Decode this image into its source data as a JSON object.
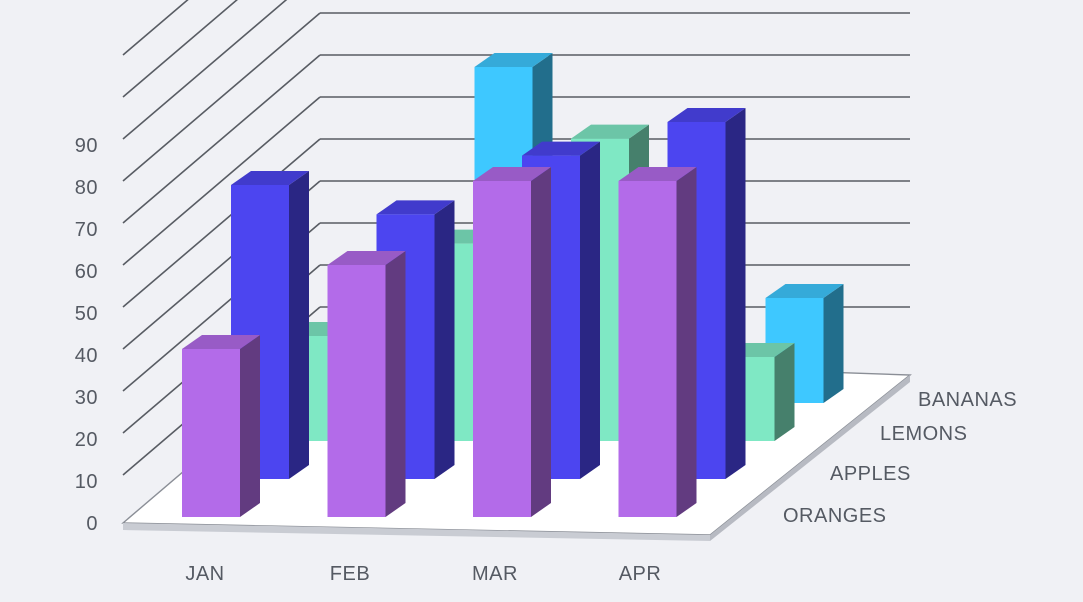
{
  "chart_data": {
    "type": "bar",
    "variant": "3d-grouped-depth",
    "categories": [
      "JAN",
      "FEB",
      "MAR",
      "APR"
    ],
    "series": [
      {
        "name": "ORANGES",
        "values": [
          40,
          60,
          80,
          80
        ],
        "color": "#b36be9"
      },
      {
        "name": "APPLES",
        "values": [
          70,
          63,
          77,
          85
        ],
        "color": "#4c45f0"
      },
      {
        "name": "LEMONS",
        "values": [
          25,
          47,
          72,
          20
        ],
        "color": "#7fe8c4"
      },
      {
        "name": "BANANAS",
        "values": [
          0,
          80,
          0,
          25
        ],
        "color": "#3ec8ff"
      }
    ],
    "y_ticks": [
      "0",
      "10",
      "20",
      "30",
      "40",
      "50",
      "60",
      "70",
      "80",
      "90"
    ],
    "ylim": [
      0,
      90
    ],
    "grid": true
  }
}
